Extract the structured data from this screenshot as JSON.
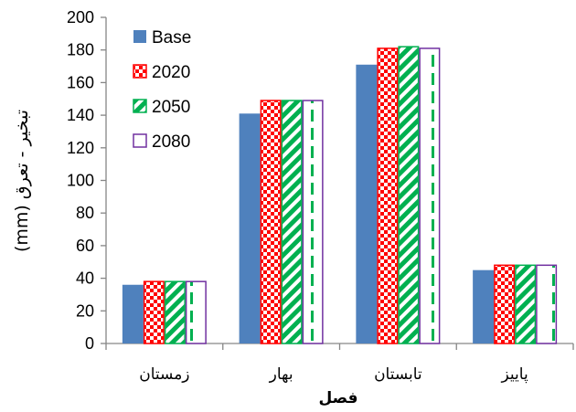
{
  "chart_data": {
    "type": "bar",
    "categories": [
      "زمستان",
      "بهار",
      "تابستان",
      "پاییز"
    ],
    "series": [
      {
        "name": "Base",
        "values": [
          36,
          141,
          171,
          45
        ],
        "color": "#4f81bd",
        "pattern": "solid"
      },
      {
        "name": "2020",
        "values": [
          38,
          149,
          181,
          48
        ],
        "color": "#ff0000",
        "pattern": "dots"
      },
      {
        "name": "2050",
        "values": [
          38,
          149,
          182,
          48
        ],
        "color": "#00b050",
        "pattern": "diagonal-stripes"
      },
      {
        "name": "2080",
        "values": [
          38,
          149,
          181,
          48
        ],
        "color": "#7030a0",
        "pattern": "dashed-vertical",
        "accent": "#00b050"
      }
    ],
    "ylim": [
      0,
      200
    ],
    "yticks": [
      0,
      20,
      40,
      60,
      80,
      100,
      120,
      140,
      160,
      180,
      200
    ],
    "xlabel": "فصل",
    "ylabel": "تبخیر - تعرق (mm)",
    "grid": false,
    "legend": "top-left"
  }
}
